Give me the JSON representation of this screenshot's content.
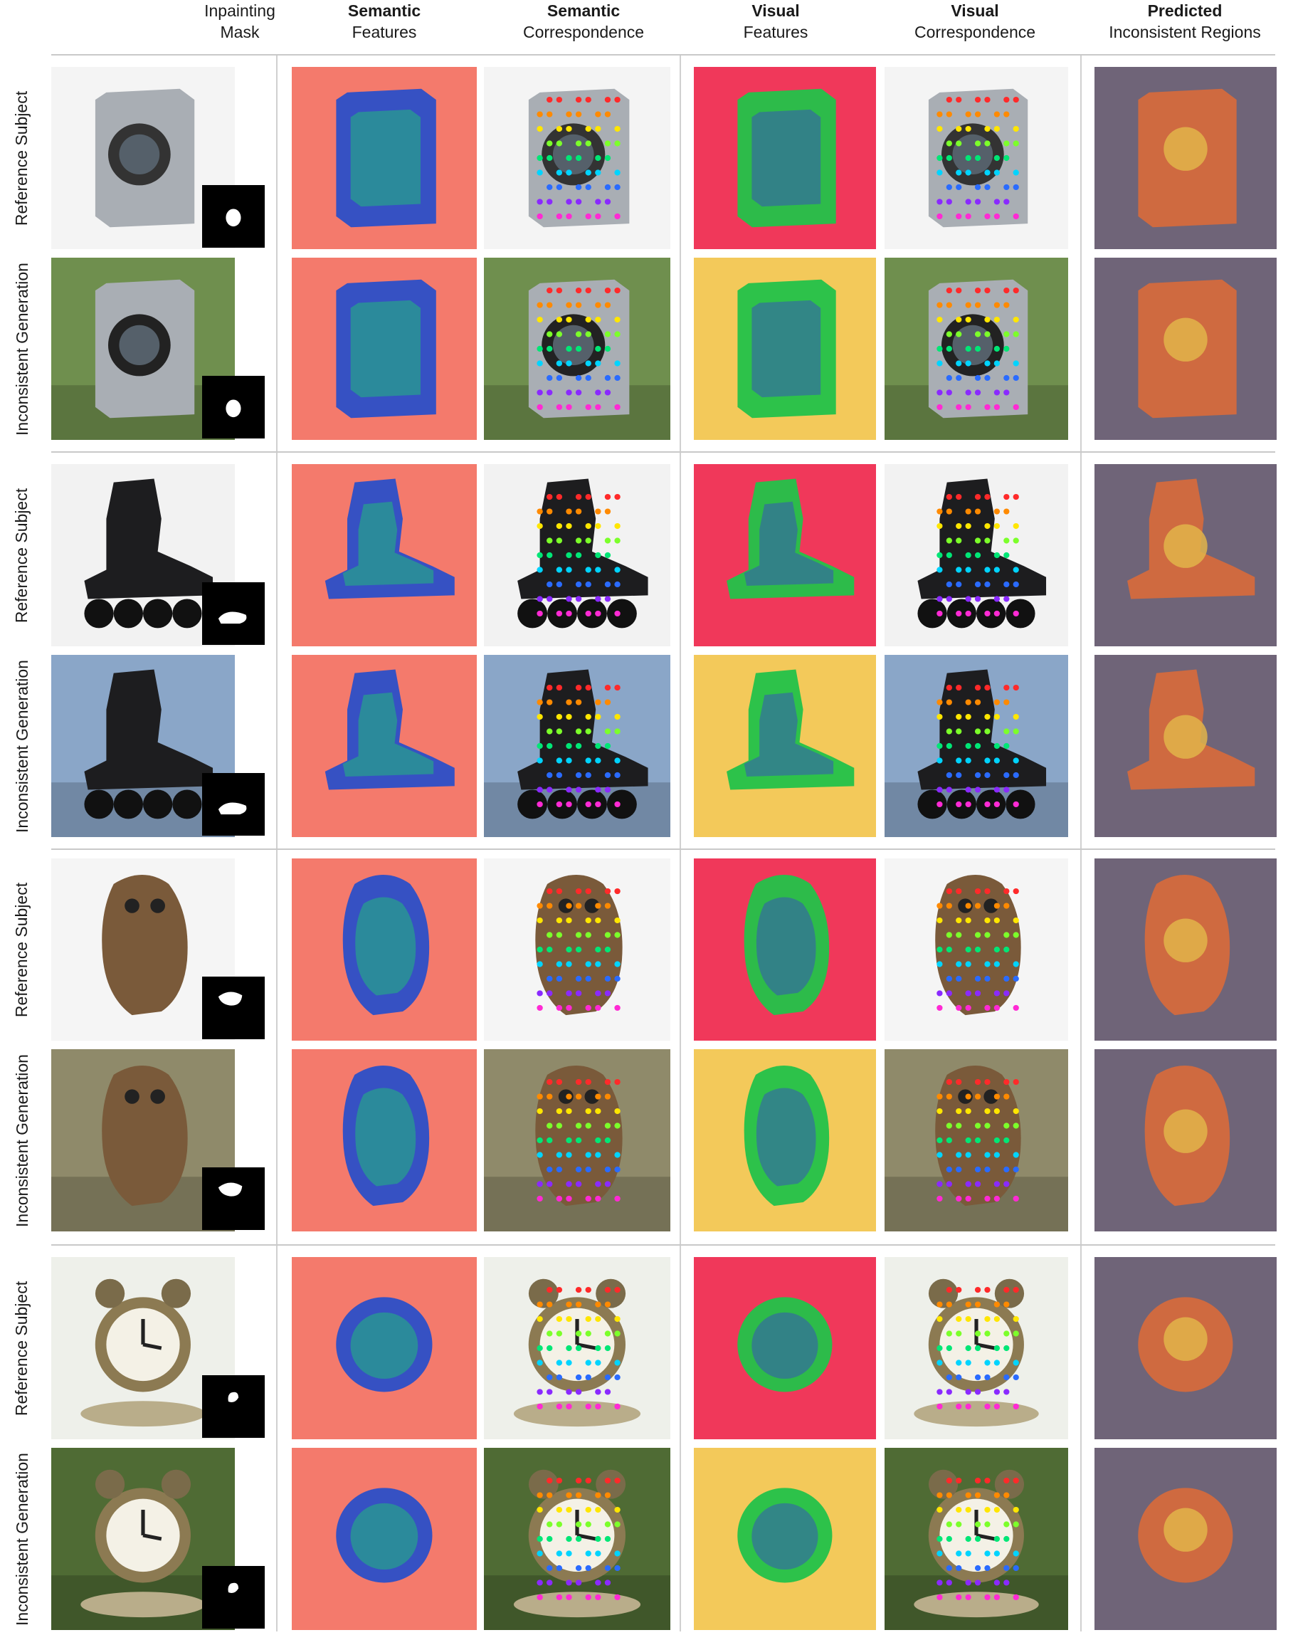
{
  "columns": [
    {
      "bold": "",
      "text": "Inpainting",
      "text2": "Mask"
    },
    {
      "bold": "Semantic",
      "text": "Features",
      "text2": ""
    },
    {
      "bold": "Semantic",
      "text": "Correspondence",
      "text2": ""
    },
    {
      "bold": "Visual",
      "text": "Features",
      "text2": ""
    },
    {
      "bold": "Visual",
      "text": "Correspondence",
      "text2": ""
    },
    {
      "bold": "Predicted",
      "text": "Inconsistent Regions",
      "text2": ""
    }
  ],
  "row_labels": {
    "reference": "Reference Subject",
    "generation": "Inconsistent Generation"
  },
  "groups": [
    {
      "subject": "washing-machine",
      "reference_bg": "#f4f4f4",
      "generation_bg": "#6f8f4e"
    },
    {
      "subject": "inline-skate",
      "reference_bg": "#f2f2f2",
      "generation_bg": "#8aa6c8"
    },
    {
      "subject": "owl",
      "reference_bg": "#f5f5f5",
      "generation_bg": "#8f8a6a"
    },
    {
      "subject": "alarm-clock",
      "reference_bg": "#eef0ea",
      "generation_bg": "#4f6b34"
    }
  ],
  "colors": {
    "semantic_feature_bg": "#f47a6c",
    "visual_feature_ref_bg": "#f0385a",
    "visual_feature_gen_bg": "#f3c95a",
    "prediction_bg": "#6f6478",
    "prediction_heat": "#d96a3a"
  }
}
